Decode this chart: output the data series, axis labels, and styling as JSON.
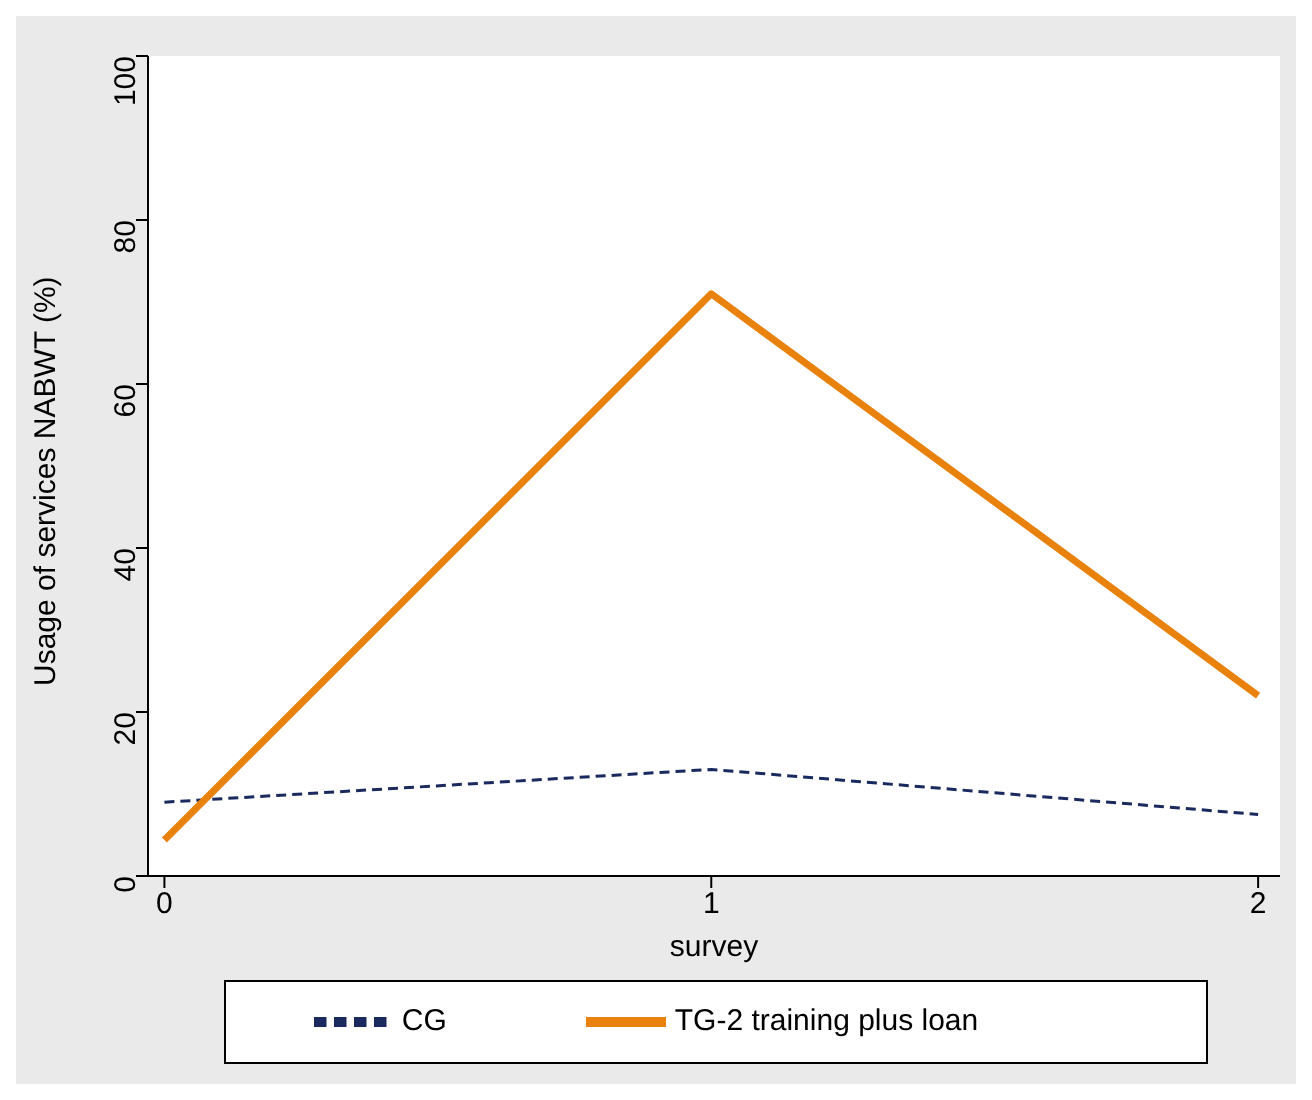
{
  "chart_data": {
    "type": "line",
    "xlabel": "survey",
    "ylabel": "Usage of services NABWT (%)",
    "x": [
      0,
      1,
      2
    ],
    "series": [
      {
        "name": "CG",
        "color": "#1a2a5e",
        "line_style": "dashed",
        "values": [
          9,
          13,
          7.5
        ]
      },
      {
        "name": "TG-2 training plus loan",
        "color": "#e8820c",
        "line_style": "solid",
        "values": [
          4.4,
          71,
          22
        ]
      }
    ],
    "xlim": [
      -0.03,
      2.04
    ],
    "xticks": [
      0,
      1,
      2
    ],
    "ylim": [
      0,
      100
    ],
    "yticks": [
      0,
      20,
      40,
      60,
      80,
      100
    ],
    "grid": false,
    "legend": "bottom",
    "marker": "none"
  }
}
